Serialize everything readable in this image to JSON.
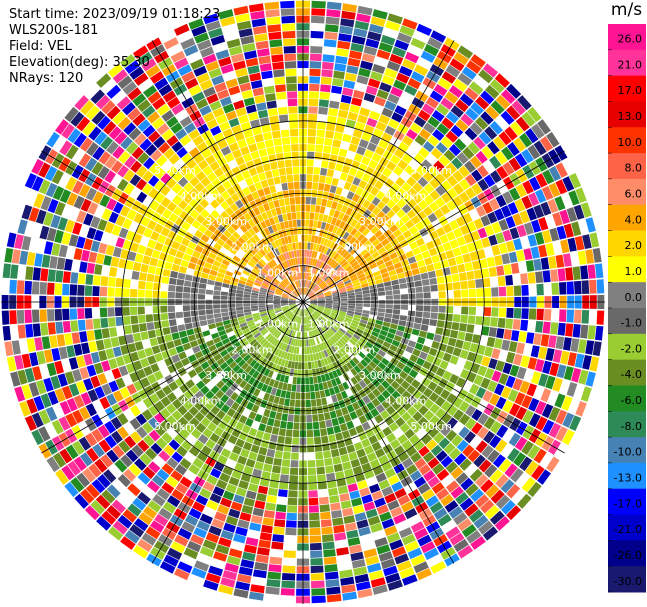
{
  "header": {
    "start_time": "Start time: 2023/09/19 01:18:23",
    "instrument": "WLS200s-181",
    "field": "Field: VEL",
    "elevation": "Elevation(deg): 35.30",
    "nrays": "NRays: 120"
  },
  "chart_data": {
    "type": "heatmap",
    "projection": "polar",
    "n_rays": 120,
    "max_range_km": 5.0,
    "range_rings_km": [
      1,
      2,
      3,
      4,
      5
    ],
    "ring_labels": [
      "1.00km",
      "2.00km",
      "3.00km",
      "4.00km",
      "5.00km"
    ],
    "spokes_deg": [
      0,
      30,
      60,
      90,
      120,
      150,
      180,
      210,
      240,
      270,
      300,
      330
    ],
    "colorbar": {
      "unit": "m/s",
      "ticks": [
        "26.0",
        "21.0",
        "17.0",
        "13.0",
        "10.0",
        "8.0",
        "6.0",
        "4.0",
        "2.0",
        "1.0",
        "0.0",
        "-1.0",
        "-2.0",
        "-4.0",
        "-6.0",
        "-8.0",
        "-10.0",
        "-13.0",
        "-17.0",
        "-21.0",
        "-26.0",
        "-30.0"
      ],
      "colors": [
        "#ff1493",
        "#ff3399",
        "#ff0000",
        "#e60000",
        "#ff3300",
        "#ff6347",
        "#ff8c69",
        "#ffa500",
        "#ffd700",
        "#ffff00",
        "#808080",
        "#696969",
        "#9acd32",
        "#6b8e23",
        "#228b22",
        "#2e8b57",
        "#4682b4",
        "#1e90ff",
        "#0000ff",
        "#0000cd",
        "#00008b",
        "#191970"
      ]
    },
    "pattern": {
      "near_field_north": "positive velocities 2 to 6 m/s (yellow/orange)",
      "near_field_south": "negative velocities -1 to -6 m/s (green)",
      "near_field_east_west": "approximately 0 m/s (gray)",
      "far_field": "noise (all colors)"
    }
  }
}
